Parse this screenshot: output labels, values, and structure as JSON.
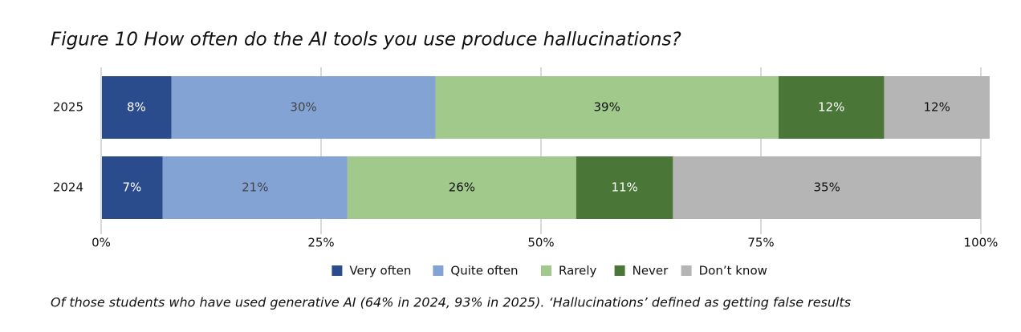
{
  "chart_data": {
    "type": "stacked-bar-horizontal",
    "title": "Figure 10 How often do the AI tools you use produce hallucinations?",
    "categories": [
      "2025",
      "2024"
    ],
    "series": [
      {
        "name": "Very often",
        "color": "#2b4c8c",
        "values": [
          8,
          7
        ],
        "value_labels": [
          "8%",
          "7%"
        ]
      },
      {
        "name": "Quite often",
        "color": "#84a3d5",
        "values": [
          30,
          21
        ],
        "value_labels": [
          "30%",
          "21%"
        ]
      },
      {
        "name": "Rarely",
        "color": "#a1c98b",
        "values": [
          39,
          26
        ],
        "value_labels": [
          "39%",
          "26%"
        ]
      },
      {
        "name": "Never",
        "color": "#4a7738",
        "values": [
          12,
          11
        ],
        "value_labels": [
          "12%",
          "11%"
        ]
      },
      {
        "name": "Don’t know",
        "color": "#b5b5b5",
        "values": [
          12,
          35
        ],
        "value_labels": [
          "12%",
          "35%"
        ]
      }
    ],
    "xlim": [
      0,
      100
    ],
    "xticks": [
      {
        "value": 0,
        "label": "0%"
      },
      {
        "value": 25,
        "label": "25%"
      },
      {
        "value": 50,
        "label": "50%"
      },
      {
        "value": 75,
        "label": "75%"
      },
      {
        "value": 100,
        "label": "100%"
      }
    ],
    "grid": true,
    "legend": "bottom",
    "note": "Of those students who have used generative AI (64% in 2024, 93% in 2025). ‘Hallucinations’ defined as getting false results"
  }
}
